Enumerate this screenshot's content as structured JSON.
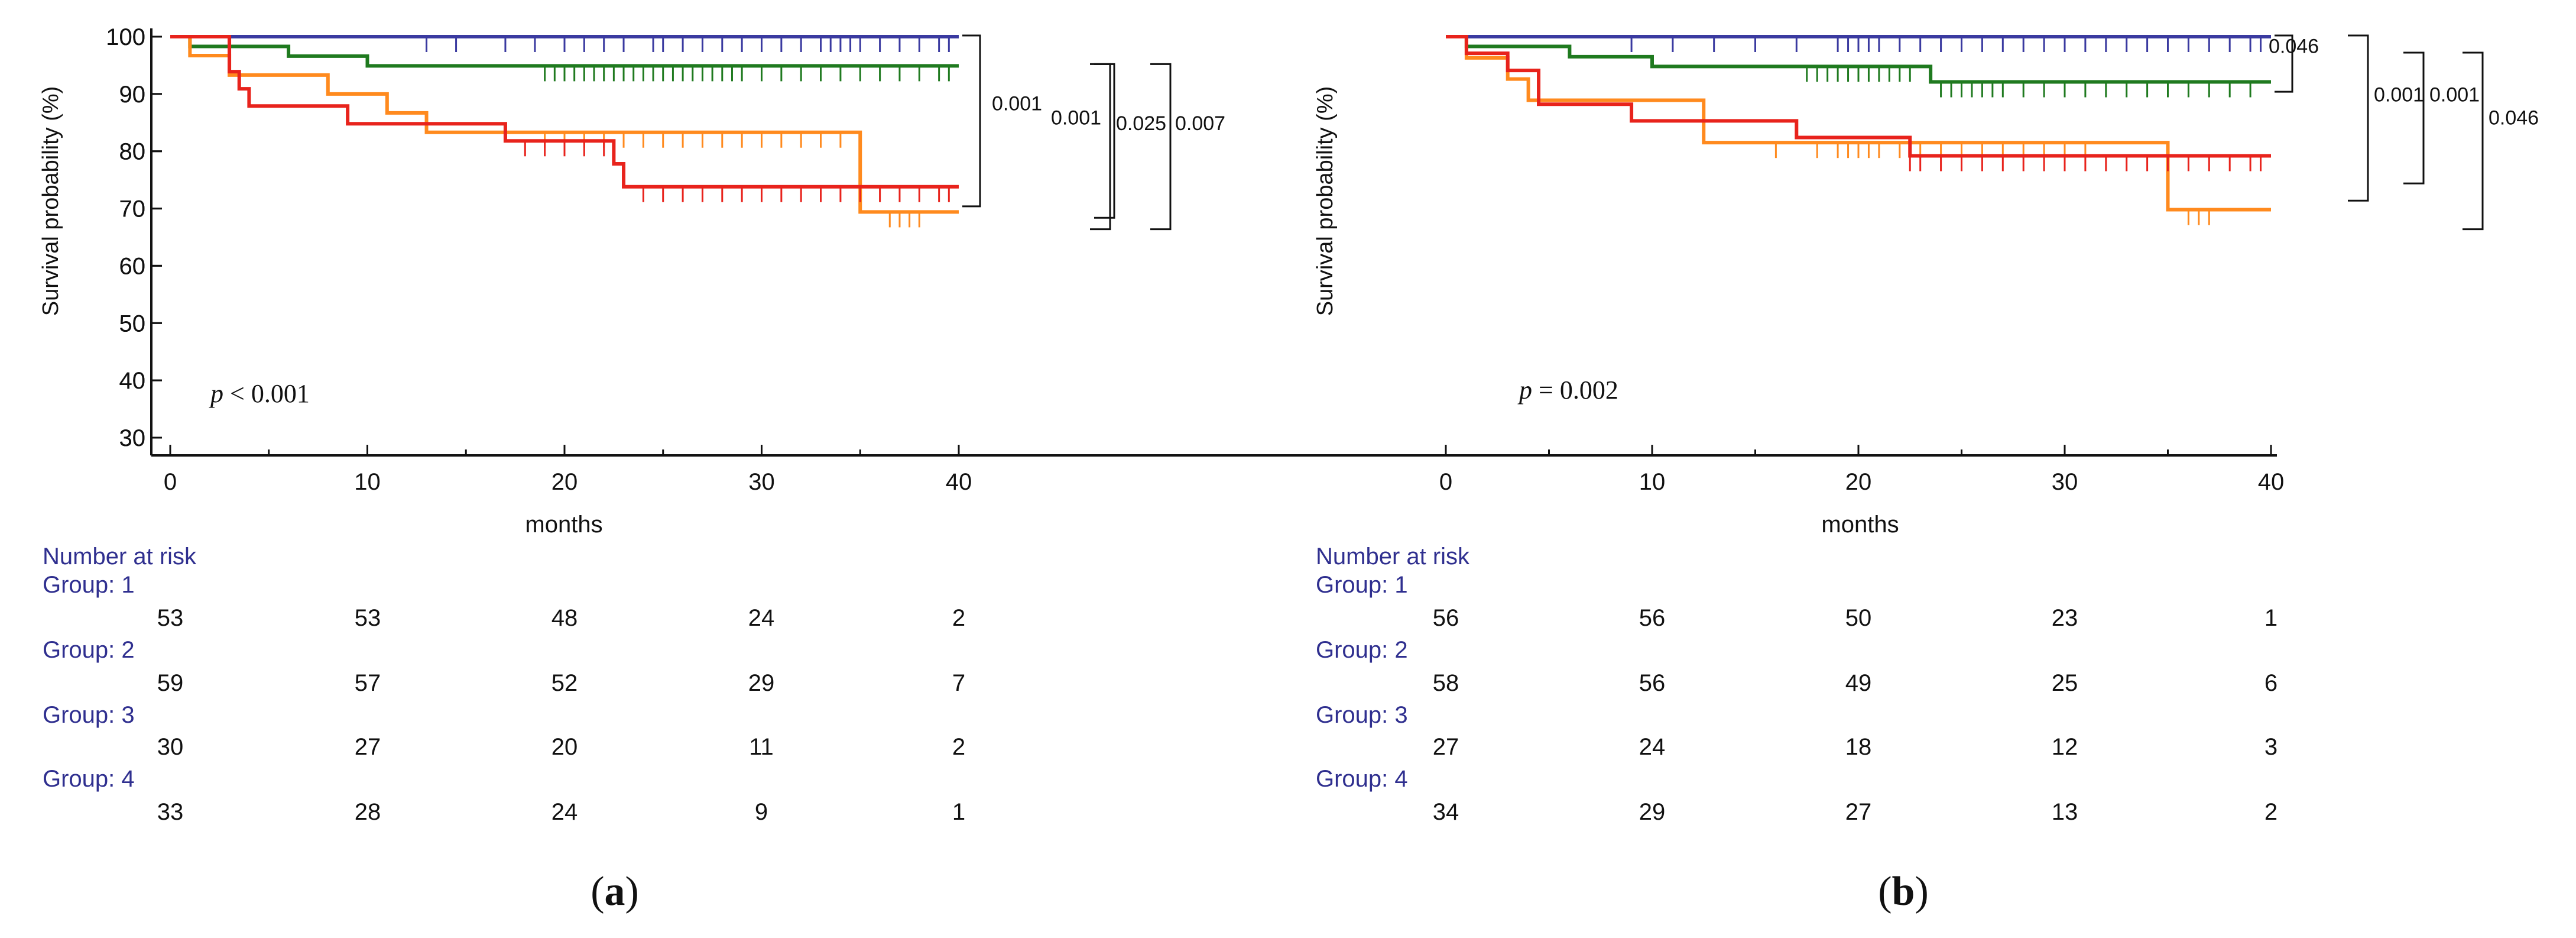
{
  "colors": {
    "group1": "#3a3aa0",
    "group2": "#1f7a1f",
    "group3": "#ff8a1e",
    "group4": "#e8231c",
    "risk_text": "#2f2f8f",
    "axis": "#111111"
  },
  "risk_header": "Number at risk",
  "panels": [
    {
      "label_open": "(",
      "label_letter": "a",
      "label_close": ")",
      "ylabel": "Survival probability (%)",
      "xlabel": "months",
      "p_italic": "p",
      "p_rest": " < 0.001",
      "risk_groups": [
        {
          "label": "Group: 1",
          "values": [
            "53",
            "53",
            "48",
            "24",
            "2"
          ]
        },
        {
          "label": "Group: 2",
          "values": [
            "59",
            "57",
            "52",
            "29",
            "7"
          ]
        },
        {
          "label": "Group: 3",
          "values": [
            "30",
            "27",
            "20",
            "11",
            "2"
          ]
        },
        {
          "label": "Group: 4",
          "values": [
            "33",
            "28",
            "24",
            "9",
            "1"
          ]
        }
      ],
      "brackets": [
        {
          "label": "0.001",
          "from": 100,
          "to": 71
        },
        {
          "label": "0.001",
          "from": 95,
          "to": 69
        },
        {
          "label": "0.025",
          "from": 95,
          "to": 67
        },
        {
          "label": "0.007",
          "from": 95,
          "to": 67
        }
      ]
    },
    {
      "label_open": "(",
      "label_letter": "b",
      "label_close": ")",
      "ylabel": "Survival probability (%)",
      "xlabel": "months",
      "p_italic": "p",
      "p_rest": " = 0.002",
      "risk_groups": [
        {
          "label": "Group: 1",
          "values": [
            "56",
            "56",
            "50",
            "23",
            "1"
          ]
        },
        {
          "label": "Group: 2",
          "values": [
            "58",
            "56",
            "49",
            "25",
            "6"
          ]
        },
        {
          "label": "Group: 3",
          "values": [
            "27",
            "24",
            "18",
            "12",
            "3"
          ]
        },
        {
          "label": "Group: 4",
          "values": [
            "34",
            "29",
            "27",
            "13",
            "2"
          ]
        }
      ],
      "brackets": [
        {
          "label": "0.046",
          "from": 100,
          "to": 91
        },
        {
          "label": "0.001",
          "from": 100,
          "to": 72
        },
        {
          "label": "0.001",
          "from": 97,
          "to": 75
        },
        {
          "label": "0.046",
          "from": 97,
          "to": 67
        }
      ]
    }
  ],
  "chart_data": [
    {
      "type": "line",
      "step": true,
      "title": "(a)",
      "xlabel": "months",
      "ylabel": "Survival probability (%)",
      "xlim": [
        0,
        40
      ],
      "ylim": [
        30,
        100
      ],
      "xticks": [
        0,
        10,
        20,
        30,
        40
      ],
      "yticks": [
        30,
        40,
        50,
        60,
        70,
        80,
        90,
        100
      ],
      "grid": false,
      "annotation": "p < 0.001",
      "series": [
        {
          "name": "Group: 1",
          "color_key": "group1",
          "x": [
            0,
            40
          ],
          "y": [
            100,
            100
          ],
          "censor": [
            13,
            14.5,
            17,
            18.5,
            20,
            21,
            22,
            23,
            24.5,
            25,
            26,
            27,
            28,
            29,
            30,
            31,
            32,
            33,
            33.5,
            34,
            34.5,
            35,
            36,
            37,
            38,
            39,
            39.5
          ]
        },
        {
          "name": "Group: 2",
          "color_key": "group2",
          "x": [
            0,
            1,
            4,
            6,
            10,
            40
          ],
          "y": [
            100,
            98.3,
            98.3,
            96.6,
            94.9,
            94.9
          ],
          "censor": [
            19,
            19.5,
            20,
            20.5,
            21,
            21.5,
            22,
            22.5,
            23,
            23.5,
            24,
            24.5,
            25,
            25.5,
            26,
            26.5,
            27,
            27.5,
            28,
            28.5,
            29,
            30,
            31,
            32,
            33,
            34,
            35,
            36,
            37,
            38,
            39,
            39.5
          ]
        },
        {
          "name": "Group: 3",
          "color_key": "group3",
          "x": [
            0,
            1,
            3,
            8,
            11,
            13,
            35,
            40
          ],
          "y": [
            100,
            96.7,
            93.3,
            90,
            86.7,
            83.3,
            69.4,
            69.4
          ],
          "censor": [
            19,
            20,
            21,
            22,
            23,
            24,
            25,
            26,
            27,
            28,
            29,
            30,
            31,
            32,
            33,
            34,
            36.5,
            37,
            37.5,
            38
          ]
        },
        {
          "name": "Group: 4",
          "color_key": "group4",
          "x": [
            0,
            3,
            3.5,
            4,
            9,
            17,
            22.5,
            23,
            40
          ],
          "y": [
            100,
            93.9,
            90.9,
            87.9,
            84.8,
            81.8,
            77.8,
            73.8,
            73.8
          ],
          "censor": [
            18,
            19,
            20,
            21,
            22,
            24,
            25,
            26,
            27,
            28,
            29,
            30,
            31,
            32,
            33,
            34,
            35,
            36,
            37,
            38,
            39,
            39.5
          ]
        }
      ]
    },
    {
      "type": "line",
      "step": true,
      "title": "(b)",
      "xlabel": "months",
      "ylabel": "Survival probability (%)",
      "xlim": [
        0,
        40
      ],
      "ylim": [
        30,
        100
      ],
      "xticks": [
        0,
        10,
        20,
        30,
        40
      ],
      "yticks": [
        30,
        40,
        50,
        60,
        70,
        80,
        90,
        100
      ],
      "grid": false,
      "annotation": "p = 0.002",
      "series": [
        {
          "name": "Group: 1",
          "color_key": "group1",
          "x": [
            0,
            40
          ],
          "y": [
            100,
            100
          ],
          "censor": [
            9,
            11,
            13,
            15,
            17,
            19,
            19.5,
            20,
            20.5,
            21,
            22,
            23,
            24,
            25,
            26,
            27,
            28,
            29,
            30,
            31,
            32,
            33,
            34,
            35,
            36,
            37,
            38,
            39,
            39.5
          ]
        },
        {
          "name": "Group: 2",
          "color_key": "group2",
          "x": [
            0,
            1,
            3,
            6,
            10,
            23.5,
            40
          ],
          "y": [
            100,
            98.3,
            98.3,
            96.5,
            94.8,
            92.1,
            92.1
          ],
          "censor": [
            17.5,
            18,
            18.5,
            19,
            19.5,
            20,
            20.5,
            21,
            21.5,
            22,
            22.5,
            24,
            24.5,
            25,
            25.5,
            26,
            26.5,
            27,
            28,
            29,
            30,
            31,
            32,
            33,
            34,
            35,
            36,
            37,
            38,
            39
          ]
        },
        {
          "name": "Group: 3",
          "color_key": "group3",
          "x": [
            0,
            1,
            3,
            4,
            8,
            12.5,
            35,
            40
          ],
          "y": [
            100,
            96.3,
            92.6,
            88.9,
            88.9,
            81.5,
            69.8,
            69.8
          ],
          "censor": [
            16,
            18,
            19,
            19.5,
            20,
            20.5,
            21,
            22,
            23,
            24,
            25,
            26,
            27,
            28,
            29,
            30,
            31,
            36,
            36.5,
            37
          ]
        },
        {
          "name": "Group: 4",
          "color_key": "group4",
          "x": [
            0,
            1,
            2,
            3,
            4.5,
            9,
            17,
            22.5,
            40
          ],
          "y": [
            100,
            97.1,
            97.1,
            94.1,
            88.2,
            85.3,
            82.4,
            79.2,
            79.2
          ],
          "censor": [
            22.5,
            23,
            24,
            25,
            26,
            27,
            28,
            29,
            30,
            31,
            32,
            33,
            34,
            35,
            36,
            37,
            38,
            39,
            39.5
          ]
        }
      ]
    }
  ]
}
